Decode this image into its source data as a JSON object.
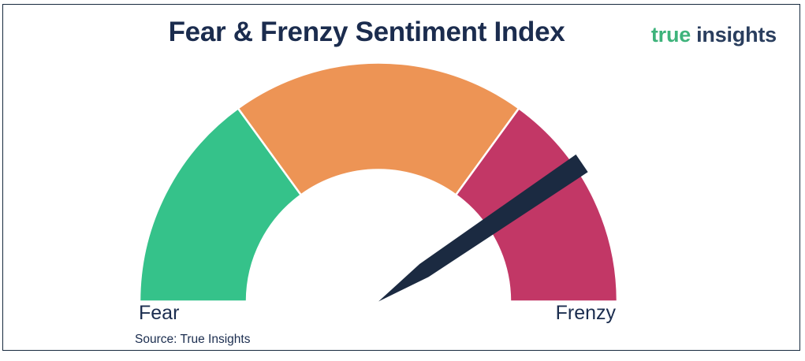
{
  "header": {
    "logo": {
      "word1": "true",
      "word2": "insights",
      "word1_color": "#3EB37B",
      "word2_color": "#2A3E5E"
    }
  },
  "source": "Source: True Insights",
  "colors": {
    "title_text": "#1B2C4E",
    "body_text": "#1B2D4F",
    "frame_border": "#16293E",
    "background": "#FFFFFF"
  },
  "chart_data": {
    "type": "gauge",
    "title": "Fear & Frenzy Sentiment Index",
    "range": [
      0,
      100
    ],
    "axis_labels": {
      "min": "Fear",
      "max": "Frenzy"
    },
    "segments": [
      {
        "from": 0,
        "to": 30,
        "color": "#35C28A"
      },
      {
        "from": 30,
        "to": 70,
        "color": "#ED9455"
      },
      {
        "from": 70,
        "to": 100,
        "color": "#C23766"
      }
    ],
    "needle": {
      "value": 81,
      "color": "#1B2A41"
    },
    "grid": false,
    "legend_position": "none"
  }
}
